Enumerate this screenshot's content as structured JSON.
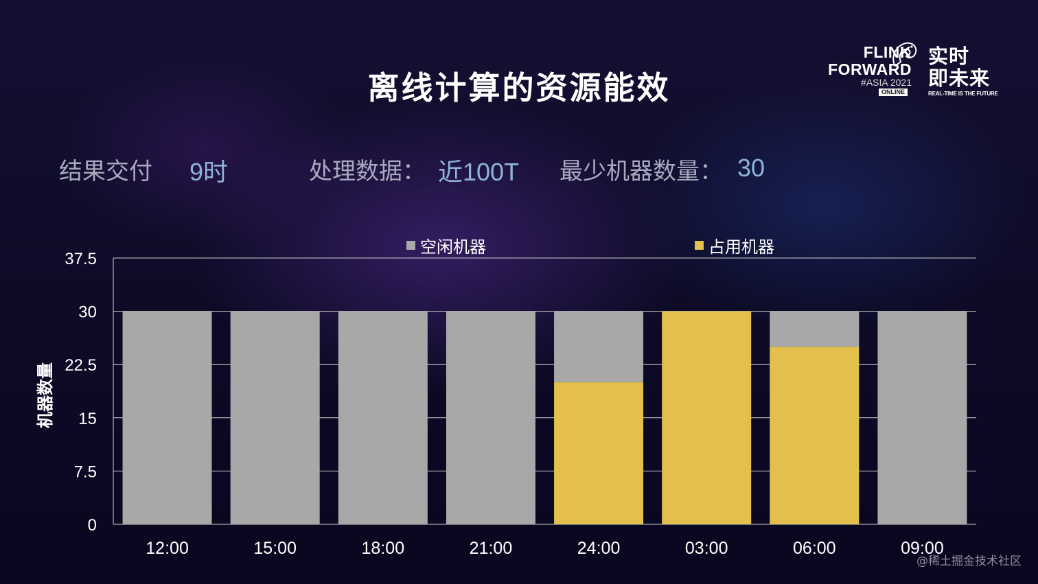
{
  "slide": {
    "title": "离线计算的资源能效"
  },
  "logo": {
    "flink_line1": "FLINK",
    "flink_line2": "FORWARD",
    "edition": "#ASIA 2021",
    "badge": "ONLINE",
    "cn_line1": "实时",
    "cn_line2": "即未来",
    "slogan": "REAL-TIME IS THE FUTURE",
    "mascot_icon": "squirrel-icon"
  },
  "stats": {
    "delivery_label": "结果交付",
    "delivery_value": "9时",
    "data_label": "处理数据：",
    "data_value": "近100T",
    "machines_label": "最少机器数量：",
    "machines_value": "30"
  },
  "watermark": "@稀土掘金技术社区",
  "chart_data": {
    "type": "bar",
    "stacked": true,
    "title": "",
    "xlabel": "",
    "ylabel": "机器数量",
    "ylim": [
      0,
      37.5
    ],
    "yticks": [
      "0",
      "7.5",
      "15",
      "22.5",
      "30",
      "37.5"
    ],
    "categories": [
      "12:00",
      "15:00",
      "18:00",
      "21:00",
      "24:00",
      "03:00",
      "06:00",
      "09:00"
    ],
    "series": [
      {
        "name": "占用机器",
        "color": "#e2c04b",
        "values": [
          0,
          0,
          0,
          0,
          20,
          30,
          25,
          0
        ]
      },
      {
        "name": "空闲机器",
        "color": "#a8a8a8",
        "values": [
          30,
          30,
          30,
          30,
          10,
          0,
          5,
          30
        ]
      }
    ],
    "legend": {
      "placement": "top",
      "order": [
        "空闲机器",
        "占用机器"
      ]
    },
    "grid": true
  }
}
